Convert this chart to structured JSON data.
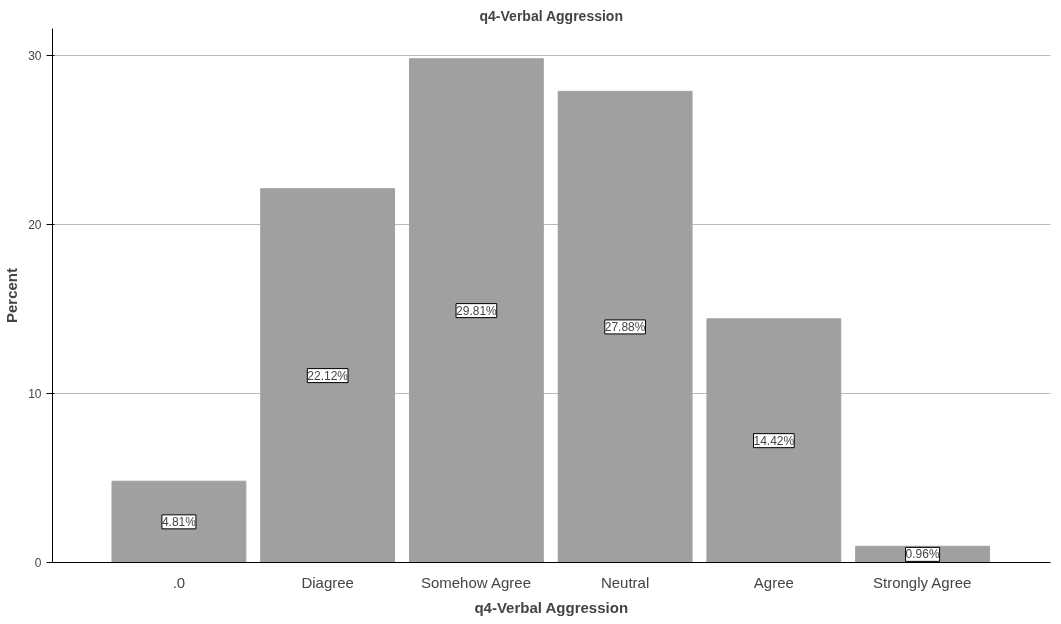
{
  "chart_data": {
    "type": "bar",
    "title": "q4-Verbal Aggression",
    "xlabel": "q4-Verbal Aggression",
    "ylabel": "Percent",
    "categories": [
      ".0",
      "Diagree",
      "Somehow Agree",
      "Neutral",
      "Agree",
      "Strongly Agree"
    ],
    "values": [
      4.81,
      22.12,
      29.81,
      27.88,
      14.42,
      0.96
    ],
    "value_labels": [
      "4.81%",
      "22.12%",
      "29.81%",
      "27.88%",
      "14.42%",
      "0.96%"
    ],
    "color": "#a0a0a0",
    "ylim": [
      0,
      31.6
    ],
    "yticks": [
      0,
      10,
      20,
      30
    ],
    "grid": "y"
  }
}
